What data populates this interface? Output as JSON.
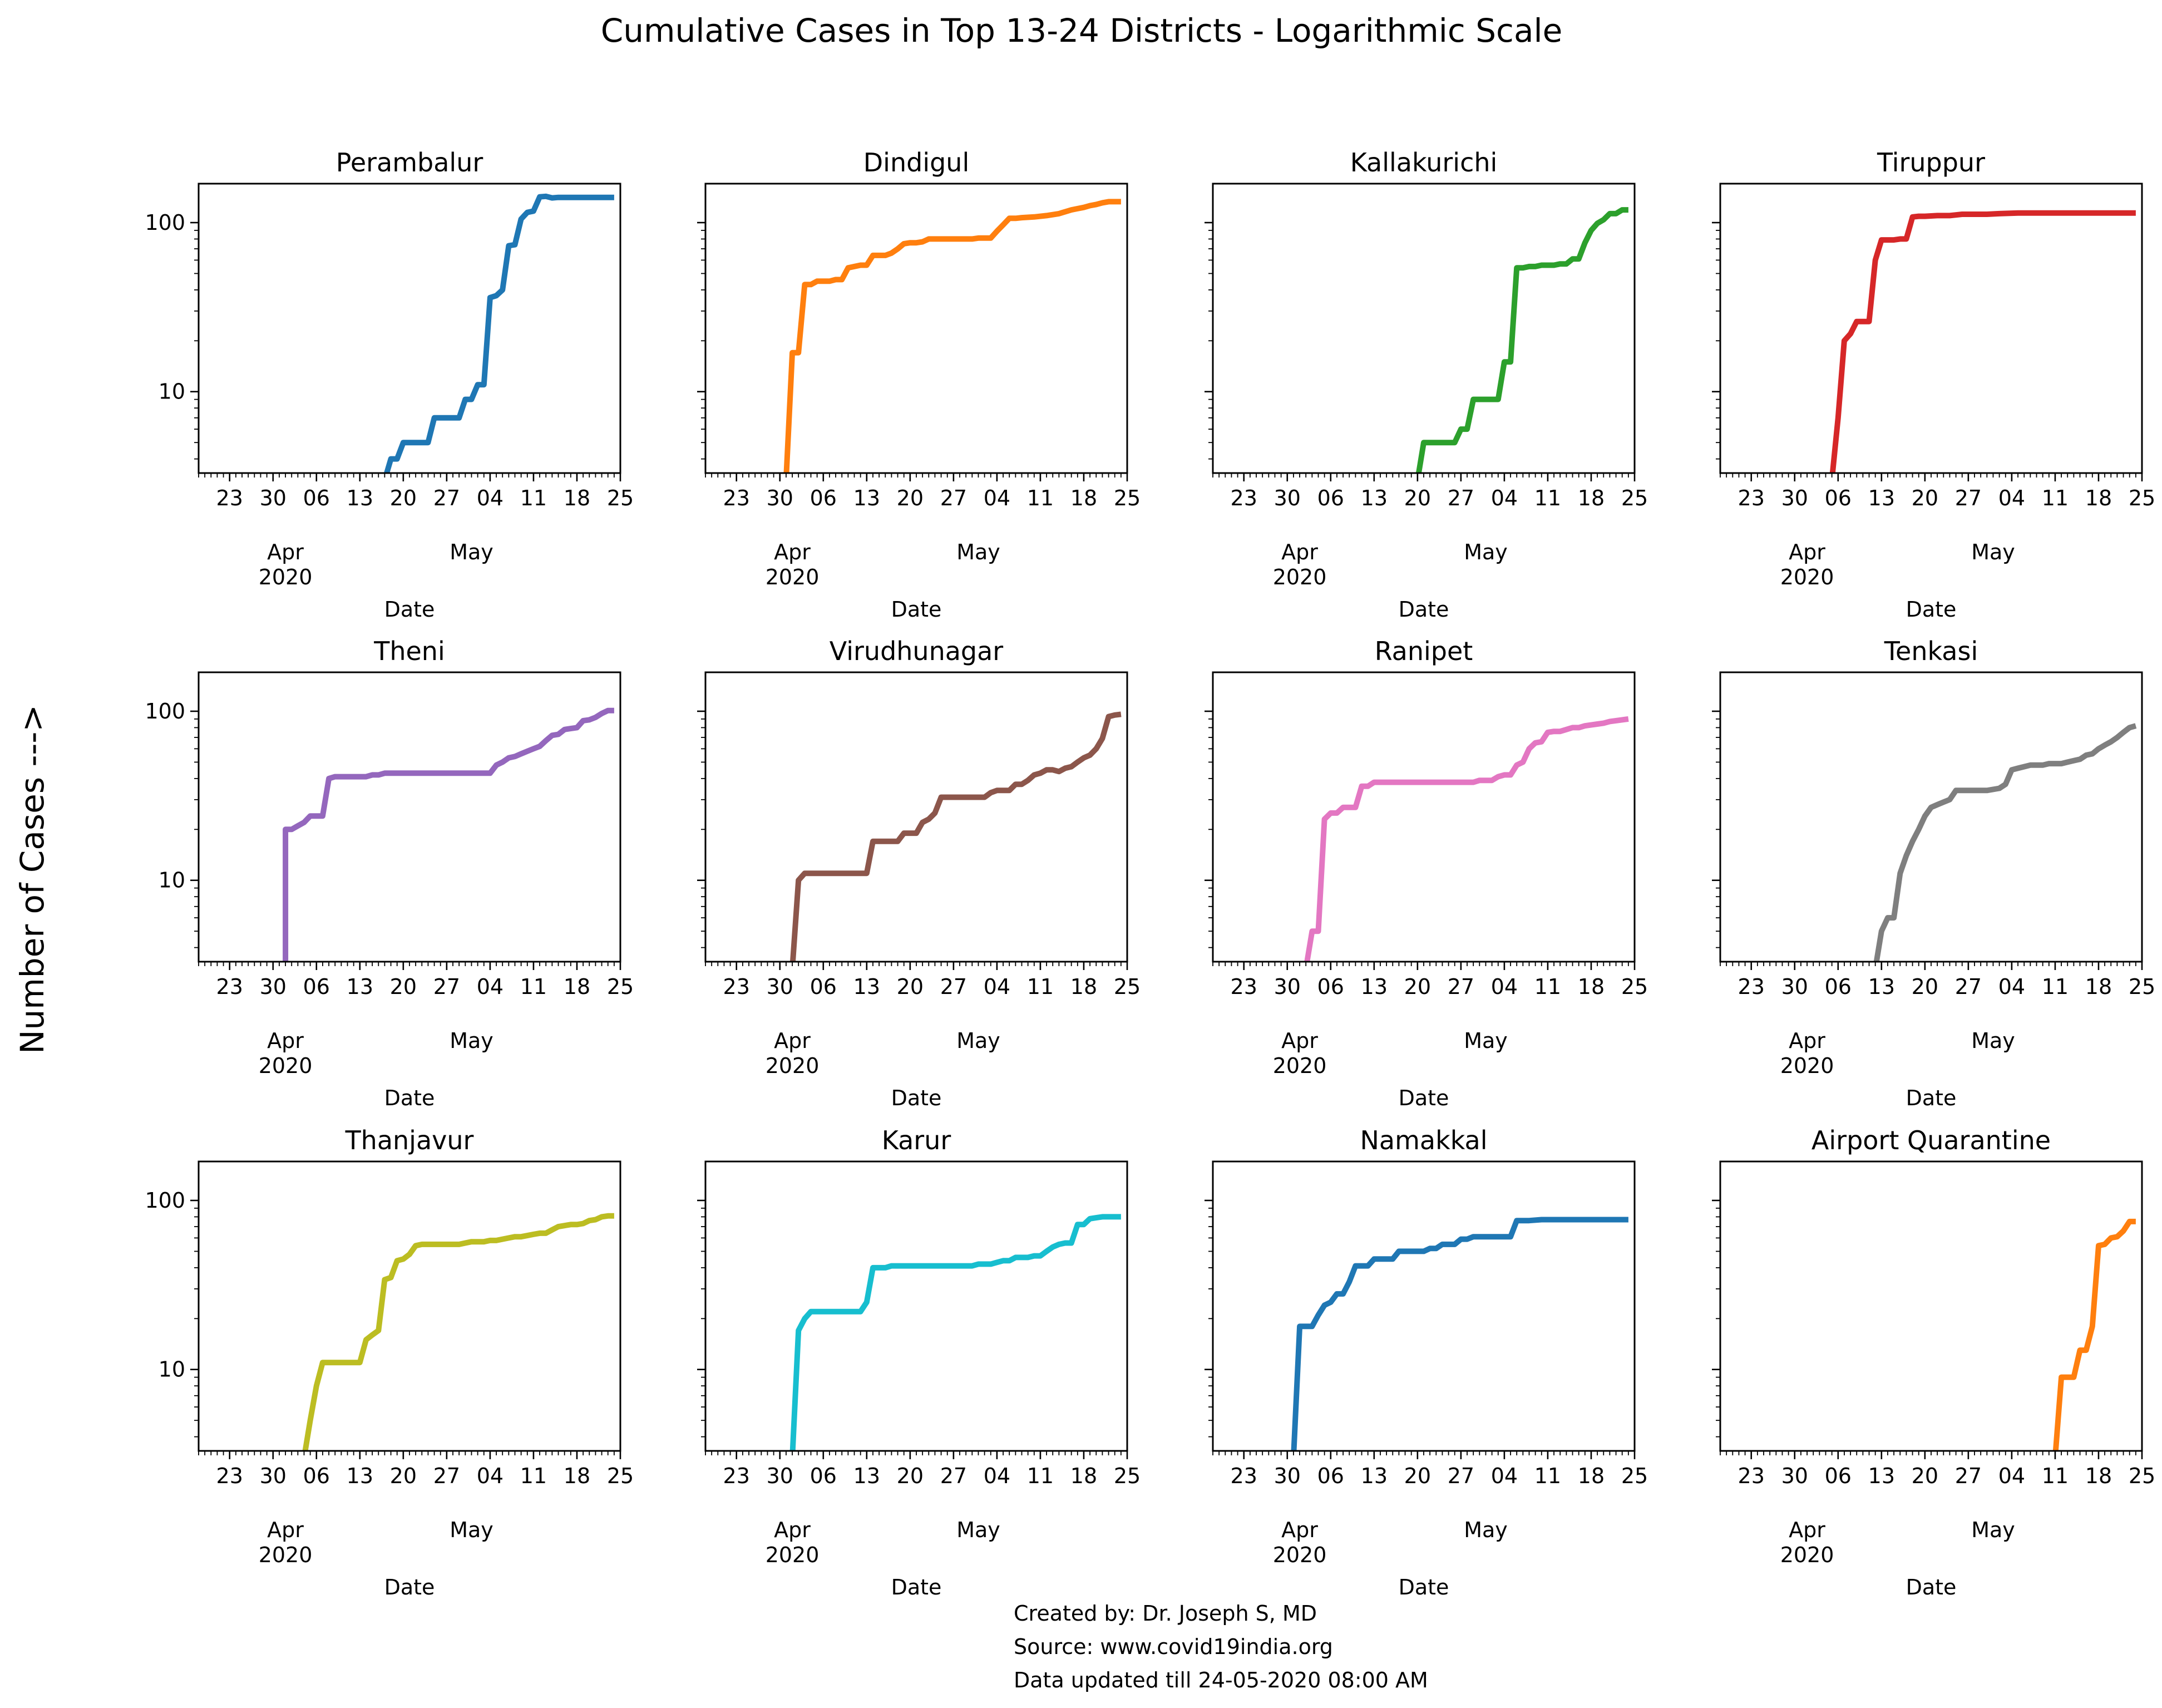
{
  "figure": {
    "title": "Cumulative Cases in Top 13-24 Districts - Logarithmic Scale",
    "ylabel": "Number of Cases --->",
    "credits": [
      "Created by: Dr. Joseph S, MD",
      "Source: www.covid19india.org",
      "Data updated till 24-05-2020 08:00 AM"
    ]
  },
  "axes_common": {
    "xlabel": "Date",
    "x_tick_labels": [
      "23",
      "30",
      "06",
      "13",
      "20",
      "27",
      "04",
      "11",
      "18",
      "25"
    ],
    "x_tick_dates": [
      "2020-03-23",
      "2020-03-30",
      "2020-04-06",
      "2020-04-13",
      "2020-04-20",
      "2020-04-27",
      "2020-05-04",
      "2020-05-11",
      "2020-05-18",
      "2020-05-25"
    ],
    "month_labels": [
      {
        "text": "Apr",
        "date": "2020-04-01",
        "sub": "2020"
      },
      {
        "text": "May",
        "date": "2020-05-01",
        "sub": ""
      }
    ],
    "xlim": [
      "2020-03-18",
      "2020-05-25"
    ],
    "y_scale": "log",
    "ylim": [
      3.3,
      170
    ],
    "y_tick_values": [
      10,
      100
    ],
    "y_tick_labels": [
      "10",
      "100"
    ],
    "grid": false
  },
  "chart_data": [
    {
      "type": "line",
      "title": "Perambalur",
      "color": "#1f77b4",
      "x": [
        "2020-04-17",
        "2020-04-18",
        "2020-04-19",
        "2020-04-20",
        "2020-04-21",
        "2020-04-22",
        "2020-04-23",
        "2020-04-24",
        "2020-04-25",
        "2020-04-26",
        "2020-04-27",
        "2020-04-28",
        "2020-04-29",
        "2020-04-30",
        "2020-05-01",
        "2020-05-02",
        "2020-05-03",
        "2020-05-04",
        "2020-05-05",
        "2020-05-06",
        "2020-05-07",
        "2020-05-08",
        "2020-05-09",
        "2020-05-10",
        "2020-05-11",
        "2020-05-12",
        "2020-05-13",
        "2020-05-14",
        "2020-05-15",
        "2020-05-16",
        "2020-05-18",
        "2020-05-20",
        "2020-05-22",
        "2020-05-24"
      ],
      "y": [
        3,
        4,
        4,
        5,
        5,
        5,
        5,
        5,
        7,
        7,
        7,
        7,
        7,
        9,
        9,
        11,
        11,
        36,
        37,
        40,
        73,
        74,
        105,
        115,
        117,
        142,
        143,
        140,
        141,
        141,
        141,
        141,
        141,
        141
      ]
    },
    {
      "type": "line",
      "title": "Dindigul",
      "color": "#ff7f0e",
      "x": [
        "2020-03-31",
        "2020-04-01",
        "2020-04-02",
        "2020-04-03",
        "2020-04-04",
        "2020-04-05",
        "2020-04-06",
        "2020-04-07",
        "2020-04-08",
        "2020-04-09",
        "2020-04-10",
        "2020-04-11",
        "2020-04-12",
        "2020-04-13",
        "2020-04-14",
        "2020-04-15",
        "2020-04-16",
        "2020-04-17",
        "2020-04-18",
        "2020-04-19",
        "2020-04-20",
        "2020-04-21",
        "2020-04-22",
        "2020-04-23",
        "2020-04-24",
        "2020-04-25",
        "2020-04-26",
        "2020-04-28",
        "2020-04-30",
        "2020-05-01",
        "2020-05-02",
        "2020-05-03",
        "2020-05-04",
        "2020-05-05",
        "2020-05-06",
        "2020-05-07",
        "2020-05-08",
        "2020-05-10",
        "2020-05-12",
        "2020-05-14",
        "2020-05-16",
        "2020-05-17",
        "2020-05-18",
        "2020-05-19",
        "2020-05-20",
        "2020-05-21",
        "2020-05-22",
        "2020-05-23",
        "2020-05-24"
      ],
      "y": [
        3,
        17,
        17,
        43,
        43,
        45,
        45,
        45,
        46,
        46,
        54,
        55,
        56,
        56,
        64,
        64,
        64,
        66,
        70,
        75,
        76,
        76,
        77,
        80,
        80,
        80,
        80,
        80,
        80,
        81,
        81,
        81,
        89,
        97,
        106,
        106,
        107,
        108,
        110,
        113,
        119,
        121,
        123,
        126,
        128,
        131,
        133,
        133,
        133
      ]
    },
    {
      "type": "line",
      "title": "Kallakurichi",
      "color": "#2ca02c",
      "x": [
        "2020-04-20",
        "2020-04-21",
        "2020-04-22",
        "2020-04-23",
        "2020-04-24",
        "2020-04-25",
        "2020-04-26",
        "2020-04-27",
        "2020-04-28",
        "2020-04-29",
        "2020-04-30",
        "2020-05-01",
        "2020-05-02",
        "2020-05-03",
        "2020-05-04",
        "2020-05-05",
        "2020-05-06",
        "2020-05-07",
        "2020-05-08",
        "2020-05-09",
        "2020-05-10",
        "2020-05-11",
        "2020-05-12",
        "2020-05-13",
        "2020-05-14",
        "2020-05-15",
        "2020-05-16",
        "2020-05-17",
        "2020-05-18",
        "2020-05-19",
        "2020-05-20",
        "2020-05-21",
        "2020-05-22",
        "2020-05-23",
        "2020-05-24"
      ],
      "y": [
        3,
        5,
        5,
        5,
        5,
        5,
        5,
        6,
        6,
        9,
        9,
        9,
        9,
        9,
        15,
        15,
        54,
        54,
        55,
        55,
        56,
        56,
        56,
        57,
        57,
        61,
        61,
        76,
        90,
        99,
        104,
        113,
        113,
        119,
        119
      ]
    },
    {
      "type": "line",
      "title": "Tiruppur",
      "color": "#d62728",
      "x": [
        "2020-04-05",
        "2020-04-06",
        "2020-04-07",
        "2020-04-08",
        "2020-04-09",
        "2020-04-10",
        "2020-04-11",
        "2020-04-12",
        "2020-04-13",
        "2020-04-14",
        "2020-04-15",
        "2020-04-16",
        "2020-04-17",
        "2020-04-18",
        "2020-04-19",
        "2020-04-20",
        "2020-04-22",
        "2020-04-24",
        "2020-04-26",
        "2020-04-28",
        "2020-04-30",
        "2020-05-02",
        "2020-05-05",
        "2020-05-10",
        "2020-05-15",
        "2020-05-20",
        "2020-05-24"
      ],
      "y": [
        3,
        7,
        20,
        22,
        26,
        26,
        26,
        60,
        79,
        79,
        79,
        80,
        80,
        108,
        109,
        109,
        110,
        110,
        112,
        112,
        112,
        113,
        114,
        114,
        114,
        114,
        114
      ]
    },
    {
      "type": "line",
      "title": "Theni",
      "color": "#9467bd",
      "x": [
        "2020-04-01",
        "2020-04-01",
        "2020-04-02",
        "2020-04-03",
        "2020-04-04",
        "2020-04-05",
        "2020-04-06",
        "2020-04-07",
        "2020-04-08",
        "2020-04-09",
        "2020-04-10",
        "2020-04-11",
        "2020-04-12",
        "2020-04-13",
        "2020-04-14",
        "2020-04-15",
        "2020-04-16",
        "2020-04-17",
        "2020-04-20",
        "2020-04-25",
        "2020-04-30",
        "2020-05-04",
        "2020-05-05",
        "2020-05-06",
        "2020-05-07",
        "2020-05-08",
        "2020-05-09",
        "2020-05-10",
        "2020-05-11",
        "2020-05-12",
        "2020-05-13",
        "2020-05-14",
        "2020-05-15",
        "2020-05-16",
        "2020-05-17",
        "2020-05-18",
        "2020-05-19",
        "2020-05-20",
        "2020-05-21",
        "2020-05-22",
        "2020-05-23",
        "2020-05-24"
      ],
      "y": [
        3,
        20,
        20,
        21,
        22,
        24,
        24,
        24,
        40,
        41,
        41,
        41,
        41,
        41,
        41,
        42,
        42,
        43,
        43,
        43,
        43,
        43,
        48,
        50,
        53,
        54,
        56,
        58,
        60,
        62,
        67,
        72,
        73,
        78,
        79,
        80,
        88,
        89,
        92,
        97,
        101,
        101
      ]
    },
    {
      "type": "line",
      "title": "Virudhunagar",
      "color": "#8c564b",
      "x": [
        "2020-04-01",
        "2020-04-02",
        "2020-04-03",
        "2020-04-04",
        "2020-04-05",
        "2020-04-08",
        "2020-04-11",
        "2020-04-13",
        "2020-04-14",
        "2020-04-15",
        "2020-04-18",
        "2020-04-19",
        "2020-04-20",
        "2020-04-21",
        "2020-04-22",
        "2020-04-23",
        "2020-04-24",
        "2020-04-25",
        "2020-04-26",
        "2020-04-28",
        "2020-04-30",
        "2020-05-02",
        "2020-05-03",
        "2020-05-04",
        "2020-05-05",
        "2020-05-06",
        "2020-05-07",
        "2020-05-08",
        "2020-05-09",
        "2020-05-10",
        "2020-05-11",
        "2020-05-12",
        "2020-05-13",
        "2020-05-14",
        "2020-05-15",
        "2020-05-16",
        "2020-05-17",
        "2020-05-18",
        "2020-05-19",
        "2020-05-20",
        "2020-05-21",
        "2020-05-22",
        "2020-05-23",
        "2020-05-24"
      ],
      "y": [
        3,
        10,
        11,
        11,
        11,
        11,
        11,
        11,
        17,
        17,
        17,
        19,
        19,
        19,
        22,
        23,
        25,
        31,
        31,
        31,
        31,
        31,
        33,
        34,
        34,
        34,
        37,
        37,
        39,
        42,
        43,
        45,
        45,
        44,
        46,
        47,
        50,
        53,
        55,
        60,
        69,
        93,
        95,
        96
      ]
    },
    {
      "type": "line",
      "title": "Ranipet",
      "color": "#e377c2",
      "x": [
        "2020-04-02",
        "2020-04-03",
        "2020-04-04",
        "2020-04-05",
        "2020-04-06",
        "2020-04-07",
        "2020-04-08",
        "2020-04-09",
        "2020-04-10",
        "2020-04-11",
        "2020-04-12",
        "2020-04-13",
        "2020-04-16",
        "2020-04-20",
        "2020-04-25",
        "2020-04-28",
        "2020-04-29",
        "2020-04-30",
        "2020-05-01",
        "2020-05-02",
        "2020-05-03",
        "2020-05-04",
        "2020-05-05",
        "2020-05-06",
        "2020-05-07",
        "2020-05-08",
        "2020-05-09",
        "2020-05-10",
        "2020-05-11",
        "2020-05-12",
        "2020-05-13",
        "2020-05-14",
        "2020-05-15",
        "2020-05-16",
        "2020-05-17",
        "2020-05-18",
        "2020-05-19",
        "2020-05-20",
        "2020-05-21",
        "2020-05-22",
        "2020-05-23",
        "2020-05-24"
      ],
      "y": [
        3,
        5,
        5,
        23,
        25,
        25,
        27,
        27,
        27,
        36,
        36,
        38,
        38,
        38,
        38,
        38,
        38,
        39,
        39,
        39,
        41,
        42,
        42,
        48,
        50,
        60,
        65,
        66,
        75,
        76,
        76,
        78,
        80,
        80,
        82,
        83,
        84,
        85,
        87,
        88,
        89,
        90
      ]
    },
    {
      "type": "line",
      "title": "Tenkasi",
      "color": "#7f7f7f",
      "x": [
        "2020-04-12",
        "2020-04-13",
        "2020-04-14",
        "2020-04-15",
        "2020-04-16",
        "2020-04-17",
        "2020-04-18",
        "2020-04-19",
        "2020-04-20",
        "2020-04-21",
        "2020-04-22",
        "2020-04-23",
        "2020-04-24",
        "2020-04-25",
        "2020-04-26",
        "2020-04-28",
        "2020-04-30",
        "2020-05-02",
        "2020-05-03",
        "2020-05-04",
        "2020-05-05",
        "2020-05-06",
        "2020-05-07",
        "2020-05-08",
        "2020-05-09",
        "2020-05-10",
        "2020-05-11",
        "2020-05-12",
        "2020-05-13",
        "2020-05-14",
        "2020-05-15",
        "2020-05-16",
        "2020-05-17",
        "2020-05-18",
        "2020-05-19",
        "2020-05-20",
        "2020-05-21",
        "2020-05-22",
        "2020-05-23",
        "2020-05-24"
      ],
      "y": [
        3,
        5,
        6,
        6,
        11,
        14,
        17,
        20,
        24,
        27,
        28,
        29,
        30,
        34,
        34,
        34,
        34,
        35,
        37,
        45,
        46,
        47,
        48,
        48,
        48,
        49,
        49,
        49,
        50,
        51,
        52,
        55,
        56,
        60,
        63,
        66,
        70,
        75,
        80,
        82
      ]
    },
    {
      "type": "line",
      "title": "Thanjavur",
      "color": "#bcbd22",
      "x": [
        "2020-04-04",
        "2020-04-05",
        "2020-04-06",
        "2020-04-07",
        "2020-04-08",
        "2020-04-09",
        "2020-04-10",
        "2020-04-11",
        "2020-04-12",
        "2020-04-13",
        "2020-04-14",
        "2020-04-15",
        "2020-04-16",
        "2020-04-17",
        "2020-04-18",
        "2020-04-19",
        "2020-04-20",
        "2020-04-21",
        "2020-04-22",
        "2020-04-23",
        "2020-04-24",
        "2020-04-25",
        "2020-04-26",
        "2020-04-27",
        "2020-04-28",
        "2020-04-29",
        "2020-04-30",
        "2020-05-01",
        "2020-05-02",
        "2020-05-03",
        "2020-05-04",
        "2020-05-05",
        "2020-05-06",
        "2020-05-07",
        "2020-05-08",
        "2020-05-09",
        "2020-05-10",
        "2020-05-11",
        "2020-05-12",
        "2020-05-13",
        "2020-05-14",
        "2020-05-15",
        "2020-05-16",
        "2020-05-17",
        "2020-05-18",
        "2020-05-19",
        "2020-05-20",
        "2020-05-21",
        "2020-05-22",
        "2020-05-23",
        "2020-05-24"
      ],
      "y": [
        3,
        5,
        8,
        11,
        11,
        11,
        11,
        11,
        11,
        11,
        15,
        16,
        17,
        34,
        35,
        44,
        45,
        48,
        54,
        55,
        55,
        55,
        55,
        55,
        55,
        55,
        56,
        57,
        57,
        57,
        58,
        58,
        59,
        60,
        61,
        61,
        62,
        63,
        64,
        64,
        67,
        70,
        71,
        72,
        72,
        73,
        76,
        77,
        80,
        81,
        81
      ]
    },
    {
      "type": "line",
      "title": "Karur",
      "color": "#17becf",
      "x": [
        "2020-04-01",
        "2020-04-02",
        "2020-04-03",
        "2020-04-04",
        "2020-04-05",
        "2020-04-08",
        "2020-04-11",
        "2020-04-12",
        "2020-04-13",
        "2020-04-14",
        "2020-04-15",
        "2020-04-16",
        "2020-04-17",
        "2020-04-20",
        "2020-04-25",
        "2020-04-30",
        "2020-05-01",
        "2020-05-02",
        "2020-05-03",
        "2020-05-04",
        "2020-05-05",
        "2020-05-06",
        "2020-05-07",
        "2020-05-08",
        "2020-05-09",
        "2020-05-10",
        "2020-05-11",
        "2020-05-12",
        "2020-05-13",
        "2020-05-14",
        "2020-05-15",
        "2020-05-16",
        "2020-05-17",
        "2020-05-18",
        "2020-05-19",
        "2020-05-20",
        "2020-05-21",
        "2020-05-22",
        "2020-05-23",
        "2020-05-24"
      ],
      "y": [
        3,
        17,
        20,
        22,
        22,
        22,
        22,
        22,
        25,
        40,
        40,
        40,
        41,
        41,
        41,
        41,
        42,
        42,
        42,
        43,
        44,
        44,
        46,
        46,
        46,
        47,
        47,
        50,
        53,
        55,
        56,
        56,
        72,
        72,
        78,
        79,
        80,
        80,
        80,
        80
      ]
    },
    {
      "type": "line",
      "title": "Namakkal",
      "color": "#1f77b4",
      "x": [
        "2020-03-31",
        "2020-04-01",
        "2020-04-02",
        "2020-04-03",
        "2020-04-04",
        "2020-04-05",
        "2020-04-06",
        "2020-04-07",
        "2020-04-08",
        "2020-04-09",
        "2020-04-10",
        "2020-04-11",
        "2020-04-12",
        "2020-04-13",
        "2020-04-14",
        "2020-04-15",
        "2020-04-16",
        "2020-04-17",
        "2020-04-18",
        "2020-04-19",
        "2020-04-20",
        "2020-04-21",
        "2020-04-22",
        "2020-04-23",
        "2020-04-24",
        "2020-04-25",
        "2020-04-26",
        "2020-04-27",
        "2020-04-28",
        "2020-04-29",
        "2020-04-30",
        "2020-05-01",
        "2020-05-02",
        "2020-05-03",
        "2020-05-04",
        "2020-05-05",
        "2020-05-06",
        "2020-05-08",
        "2020-05-10",
        "2020-05-15",
        "2020-05-20",
        "2020-05-24"
      ],
      "y": [
        3,
        18,
        18,
        18,
        21,
        24,
        25,
        28,
        28,
        33,
        41,
        41,
        41,
        45,
        45,
        45,
        45,
        50,
        50,
        50,
        50,
        50,
        52,
        52,
        55,
        55,
        55,
        59,
        59,
        61,
        61,
        61,
        61,
        61,
        61,
        61,
        76,
        76,
        77,
        77,
        77,
        77
      ]
    },
    {
      "type": "line",
      "title": "Airport Quarantine",
      "color": "#ff7f0e",
      "x": [
        "2020-05-11",
        "2020-05-12",
        "2020-05-13",
        "2020-05-14",
        "2020-05-15",
        "2020-05-16",
        "2020-05-17",
        "2020-05-18",
        "2020-05-19",
        "2020-05-20",
        "2020-05-21",
        "2020-05-22",
        "2020-05-23",
        "2020-05-24"
      ],
      "y": [
        3,
        9,
        9,
        9,
        13,
        13,
        18,
        54,
        55,
        60,
        61,
        66,
        75,
        75
      ]
    }
  ]
}
